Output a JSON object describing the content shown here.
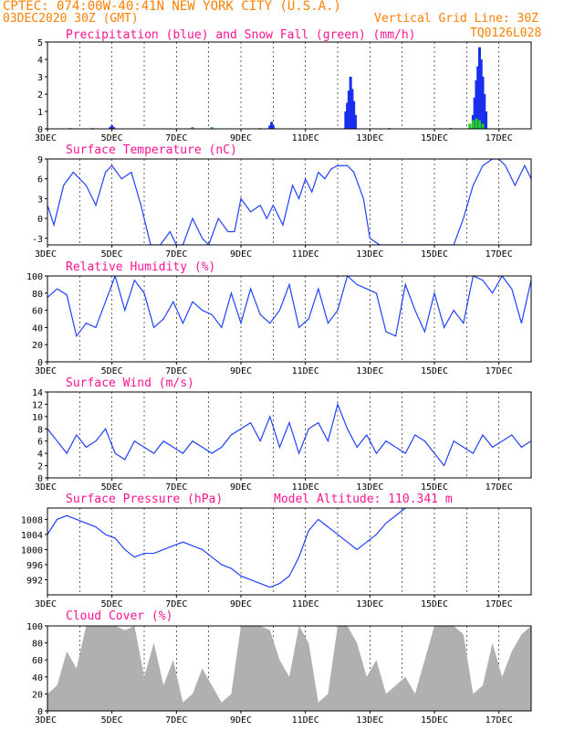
{
  "header": {
    "line1": "CPTEC:  074:00W-40:41N  NEW YORK CITY (U.S.A.)",
    "date": "03DEC2020 30Z (GMT)",
    "grid_note": "Vertical Grid Line: 30Z",
    "code": "TQ0126L028"
  },
  "colors": {
    "header": "#ff7f00",
    "title": "#ff1493",
    "line": "#2040ff",
    "rain": "#1a2ef0",
    "snow": "#22cc22",
    "cloud": "#b0b0b0"
  },
  "chart_data": [
    {
      "type": "bar",
      "title": "Precipitation (blue) and Snow Fall (green) (mm/h)",
      "xticks": [
        "3DEC",
        "5DEC",
        "7DEC",
        "9DEC",
        "11DEC",
        "13DEC",
        "15DEC",
        "17DEC"
      ],
      "ylim": [
        0,
        5
      ],
      "yticks": [
        0,
        1,
        2,
        3,
        4,
        5
      ],
      "series": [
        {
          "name": "Precipitation",
          "x": [
            4.95,
            5.0,
            5.05,
            9.9,
            9.95,
            10.0,
            12.25,
            12.3,
            12.35,
            12.4,
            12.45,
            12.5,
            12.55,
            16.2,
            16.25,
            16.3,
            16.35,
            16.4,
            16.45,
            16.5,
            16.55,
            16.6
          ],
          "values": [
            0.1,
            0.2,
            0.1,
            0.2,
            0.4,
            0.2,
            1.0,
            1.5,
            2.2,
            3.0,
            2.3,
            1.6,
            0.8,
            0.8,
            1.8,
            2.8,
            3.6,
            4.7,
            4.0,
            3.0,
            2.0,
            1.0
          ]
        },
        {
          "name": "Snow Fall",
          "x": [
            3.7,
            4.4,
            7.5,
            8.1,
            9.6,
            13.6,
            15.5,
            16.1,
            16.2,
            16.3,
            16.4,
            16.5
          ],
          "values": [
            0.05,
            0.05,
            0.1,
            0.1,
            0.05,
            0.05,
            0.05,
            0.3,
            0.5,
            0.6,
            0.5,
            0.3
          ]
        }
      ]
    },
    {
      "type": "line",
      "title": "Surface Temperature (nC)",
      "xticks": [
        "3DEC",
        "5DEC",
        "7DEC",
        "9DEC",
        "11DEC",
        "13DEC",
        "15DEC",
        "17DEC"
      ],
      "ylim": [
        -4,
        9
      ],
      "yticks": [
        -3,
        0,
        3,
        6,
        9
      ],
      "x": [
        3.0,
        3.2,
        3.5,
        3.8,
        4.2,
        4.5,
        4.8,
        5.0,
        5.3,
        5.6,
        5.9,
        6.2,
        6.5,
        6.8,
        7.0,
        7.2,
        7.5,
        7.8,
        8.0,
        8.3,
        8.6,
        8.8,
        9.0,
        9.3,
        9.6,
        9.8,
        10.0,
        10.3,
        10.6,
        10.8,
        11.0,
        11.2,
        11.4,
        11.6,
        11.8,
        12.0,
        12.3,
        12.5,
        12.8,
        13.0,
        13.3,
        13.6,
        13.9,
        14.2,
        14.5,
        14.8,
        15.0,
        15.3,
        15.6,
        15.9,
        16.2,
        16.5,
        16.8,
        17.0,
        17.2,
        17.5,
        17.8,
        18.0
      ],
      "y": [
        2,
        -1,
        5,
        7,
        5,
        2,
        7,
        8,
        6,
        7,
        2,
        -4,
        -4,
        -2,
        -4,
        -4,
        0,
        -3,
        -4,
        0,
        -2,
        -2,
        3,
        1,
        2,
        0,
        2,
        -1,
        5,
        3,
        6,
        4,
        7,
        6,
        7.5,
        8,
        8,
        7,
        3,
        -3,
        -4,
        -4,
        -4,
        -4,
        -4,
        -4,
        -4,
        -4,
        -4,
        0,
        5,
        8,
        9,
        9,
        8,
        5,
        8,
        6
      ]
    },
    {
      "type": "line",
      "title": "Relative Humidity (%)",
      "xticks": [
        "3DEC",
        "5DEC",
        "7DEC",
        "9DEC",
        "11DEC",
        "13DEC",
        "15DEC",
        "17DEC"
      ],
      "ylim": [
        0,
        100
      ],
      "yticks": [
        0,
        20,
        40,
        60,
        80,
        100
      ],
      "x": [
        3.0,
        3.3,
        3.6,
        3.9,
        4.2,
        4.5,
        4.8,
        5.1,
        5.4,
        5.7,
        6.0,
        6.3,
        6.6,
        6.9,
        7.2,
        7.5,
        7.8,
        8.1,
        8.4,
        8.7,
        9.0,
        9.3,
        9.6,
        9.9,
        10.2,
        10.5,
        10.8,
        11.1,
        11.4,
        11.7,
        12.0,
        12.3,
        12.6,
        12.9,
        13.2,
        13.5,
        13.8,
        14.1,
        14.4,
        14.7,
        15.0,
        15.3,
        15.6,
        15.9,
        16.2,
        16.5,
        16.8,
        17.1,
        17.4,
        17.7,
        18.0
      ],
      "y": [
        75,
        85,
        78,
        30,
        45,
        40,
        70,
        100,
        60,
        95,
        80,
        40,
        50,
        70,
        45,
        70,
        60,
        55,
        40,
        80,
        45,
        85,
        55,
        45,
        60,
        90,
        40,
        50,
        85,
        45,
        60,
        100,
        90,
        85,
        80,
        35,
        30,
        90,
        60,
        35,
        80,
        40,
        60,
        45,
        100,
        95,
        80,
        100,
        85,
        45,
        95
      ]
    },
    {
      "type": "line",
      "title": "Surface Wind (m/s)",
      "xticks": [
        "3DEC",
        "5DEC",
        "7DEC",
        "9DEC",
        "11DEC",
        "13DEC",
        "15DEC",
        "17DEC"
      ],
      "ylim": [
        0,
        14
      ],
      "yticks": [
        0,
        2,
        4,
        6,
        8,
        10,
        12,
        14
      ],
      "x": [
        3.0,
        3.3,
        3.6,
        3.9,
        4.2,
        4.5,
        4.8,
        5.1,
        5.4,
        5.7,
        6.0,
        6.3,
        6.6,
        6.9,
        7.2,
        7.5,
        7.8,
        8.1,
        8.4,
        8.7,
        9.0,
        9.3,
        9.6,
        9.9,
        10.2,
        10.5,
        10.8,
        11.1,
        11.4,
        11.7,
        12.0,
        12.3,
        12.6,
        12.9,
        13.2,
        13.5,
        13.8,
        14.1,
        14.4,
        14.7,
        15.0,
        15.3,
        15.6,
        15.9,
        16.2,
        16.5,
        16.8,
        17.1,
        17.4,
        17.7,
        18.0
      ],
      "y": [
        8,
        6,
        4,
        7,
        5,
        6,
        8,
        4,
        3,
        6,
        5,
        4,
        6,
        5,
        4,
        6,
        5,
        4,
        5,
        7,
        8,
        9,
        6,
        10,
        5,
        9,
        4,
        8,
        9,
        6,
        12,
        8,
        5,
        7,
        4,
        6,
        5,
        4,
        7,
        6,
        4,
        2,
        6,
        5,
        4,
        7,
        5,
        6,
        7,
        5,
        6
      ]
    },
    {
      "type": "line",
      "title": "Surface Pressure (hPa)",
      "annotation": "Model Altitude: 110.341 m",
      "xticks": [
        "3DEC",
        "5DEC",
        "7DEC",
        "9DEC",
        "11DEC",
        "13DEC",
        "15DEC",
        "17DEC"
      ],
      "ylim": [
        988,
        1011
      ],
      "yticks": [
        992,
        996,
        1000,
        1004,
        1008
      ],
      "x": [
        3.0,
        3.3,
        3.6,
        3.9,
        4.2,
        4.5,
        4.8,
        5.1,
        5.4,
        5.7,
        6.0,
        6.3,
        6.6,
        6.9,
        7.2,
        7.5,
        7.8,
        8.1,
        8.4,
        8.7,
        9.0,
        9.3,
        9.6,
        9.9,
        10.2,
        10.5,
        10.8,
        11.1,
        11.4,
        11.7,
        12.0,
        12.3,
        12.6,
        12.9,
        13.2,
        13.5,
        13.8,
        14.1
      ],
      "y": [
        1004,
        1008,
        1009,
        1008,
        1007,
        1006,
        1004,
        1003,
        1000,
        998,
        999,
        999,
        1000,
        1001,
        1002,
        1001,
        1000,
        998,
        996,
        995,
        993,
        992,
        991,
        990,
        991,
        993,
        998,
        1005,
        1008,
        1006,
        1004,
        1002,
        1000,
        1002,
        1004,
        1007,
        1009,
        1011
      ]
    },
    {
      "type": "area",
      "title": "Cloud Cover (%)",
      "xticks": [
        "3DEC",
        "5DEC",
        "7DEC",
        "9DEC",
        "11DEC",
        "13DEC",
        "15DEC",
        "17DEC"
      ],
      "ylim": [
        0,
        100
      ],
      "yticks": [
        0,
        20,
        40,
        60,
        80,
        100
      ],
      "x": [
        3.0,
        3.3,
        3.6,
        3.9,
        4.2,
        4.5,
        4.8,
        5.1,
        5.4,
        5.7,
        6.0,
        6.3,
        6.6,
        6.9,
        7.2,
        7.5,
        7.8,
        8.1,
        8.4,
        8.7,
        9.0,
        9.3,
        9.6,
        9.9,
        10.2,
        10.5,
        10.8,
        11.1,
        11.4,
        11.7,
        12.0,
        12.3,
        12.6,
        12.9,
        13.2,
        13.5,
        13.8,
        14.1,
        14.4,
        14.7,
        15.0,
        15.3,
        15.6,
        15.9,
        16.2,
        16.5,
        16.8,
        17.1,
        17.4,
        17.7,
        18.0
      ],
      "y": [
        20,
        30,
        70,
        50,
        100,
        100,
        100,
        100,
        95,
        100,
        40,
        80,
        30,
        60,
        10,
        20,
        50,
        30,
        10,
        20,
        100,
        100,
        100,
        95,
        60,
        40,
        100,
        80,
        10,
        20,
        100,
        100,
        80,
        40,
        60,
        20,
        30,
        40,
        20,
        60,
        100,
        100,
        100,
        90,
        20,
        30,
        80,
        40,
        70,
        90,
        100
      ]
    }
  ]
}
